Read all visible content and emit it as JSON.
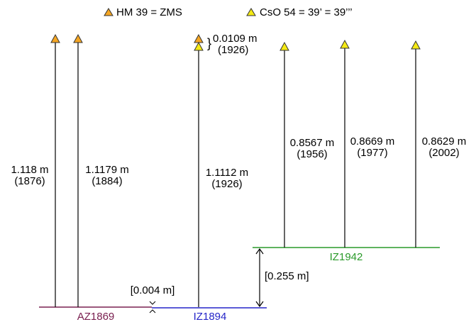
{
  "legend": [
    {
      "marker": "orange-triangle-icon",
      "color": "#f5a623",
      "text": "HM 39 = ZMS"
    },
    {
      "marker": "yellow-triangle-icon",
      "color": "#f5ea14",
      "text": "CsO 54 = 39’ = 39’’’"
    }
  ],
  "baselines": [
    {
      "name": "AZ1869",
      "color": "#7a2050"
    },
    {
      "name": "IZ1894",
      "color": "#2525c8"
    },
    {
      "name": "IZ1942",
      "color": "#2a9a2a"
    }
  ],
  "rods": [
    {
      "marker": "orange",
      "length": "1.118 m",
      "year": "(1876)"
    },
    {
      "marker": "orange",
      "length": "1.1179 m",
      "year": "(1884)"
    },
    {
      "marker": "orange+yellow",
      "length": "1.1112 m",
      "year": "(1926)"
    },
    {
      "marker": "yellow",
      "length": "0.8567 m",
      "year": "(1956)"
    },
    {
      "marker": "yellow",
      "length": "0.8669 m",
      "year": "(1977)"
    },
    {
      "marker": "yellow",
      "length": "0.8629 m",
      "year": "(2002)"
    }
  ],
  "offsets": {
    "marker_gap": {
      "value": "0.0109 m",
      "year": "(1926)"
    },
    "az_iz_offset": "[0.004 m]",
    "iz_offset": "[0.255 m]"
  },
  "colors": {
    "orange": "#f5a623",
    "yellow": "#f5ea14",
    "outline": "#333333"
  }
}
